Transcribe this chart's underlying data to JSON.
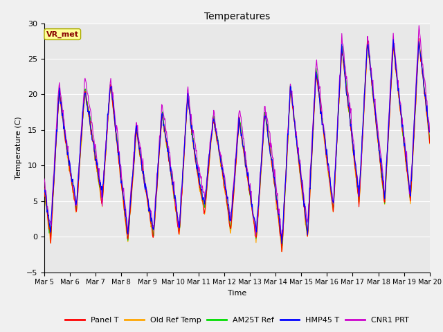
{
  "title": "Temperatures",
  "xlabel": "Time",
  "ylabel": "Temperature (C)",
  "ylim": [
    -5,
    30
  ],
  "fig_facecolor": "#f0f0f0",
  "plot_bg_color": "#e8e8e8",
  "series_colors": {
    "Panel T": "#ff0000",
    "Old Ref Temp": "#ffa500",
    "AM25T Ref": "#00dd00",
    "HMP45 T": "#0000ff",
    "CNR1 PRT": "#cc00cc"
  },
  "annotation_text": "VR_met",
  "annotation_bg": "#ffff99",
  "annotation_border": "#aaaa00",
  "annotation_text_color": "#880000",
  "x_tick_labels": [
    "Mar 5",
    "Mar 6",
    "Mar 7",
    "Mar 8",
    "Mar 9",
    "Mar 10",
    "Mar 11",
    "Mar 12",
    "Mar 13",
    "Mar 14",
    "Mar 15",
    "Mar 16",
    "Mar 17",
    "Mar 18",
    "Mar 19",
    "Mar 20"
  ],
  "n_days": 15,
  "pts_per_day": 48,
  "seed": 17
}
